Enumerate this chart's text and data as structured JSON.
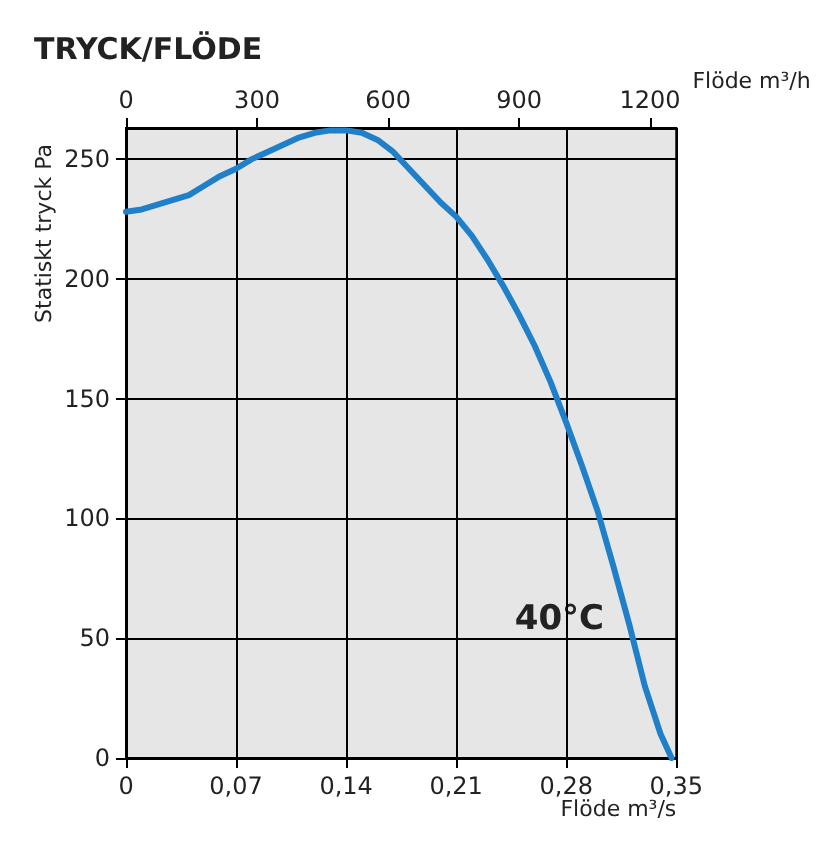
{
  "chart_data": {
    "type": "line",
    "title": "TRYCK/FLÖDE",
    "xlabel": "Flöde m³/s",
    "x2label": "Flöde m³/h",
    "ylabel": "Statiskt tryck Pa",
    "xlim": [
      0,
      0.35
    ],
    "xticks": [
      0,
      {
        "value": 0.07,
        "label": "0,07"
      },
      {
        "value": 0.14,
        "label": "0,14"
      },
      {
        "value": 0.21,
        "label": "0,21"
      },
      {
        "value": 0.28,
        "label": "0,28"
      },
      {
        "value": 0.35,
        "label": "0,35"
      }
    ],
    "x2lim": [
      0,
      1260
    ],
    "x2ticks": [
      0,
      300,
      600,
      900,
      1200
    ],
    "ylim": [
      0,
      263
    ],
    "yticks": [
      0,
      50,
      100,
      150,
      200,
      250
    ],
    "grid": true,
    "marker": "none",
    "line_style": "solid",
    "annotations": [
      "40°C"
    ],
    "series": [
      {
        "color": "#1f80c9",
        "x": [
          0,
          0.01,
          0.02,
          0.03,
          0.04,
          0.05,
          0.06,
          0.07,
          0.08,
          0.09,
          0.1,
          0.11,
          0.12,
          0.13,
          0.14,
          0.15,
          0.16,
          0.17,
          0.18,
          0.19,
          0.2,
          0.21,
          0.22,
          0.23,
          0.24,
          0.25,
          0.26,
          0.27,
          0.28,
          0.29,
          0.3,
          0.31,
          0.32,
          0.33,
          0.34,
          0.347
        ],
        "values": [
          228,
          229,
          231,
          233,
          235,
          239,
          243,
          246,
          250,
          253,
          256,
          259,
          261,
          262,
          262,
          261,
          258,
          253,
          246,
          239,
          232,
          226,
          218,
          208,
          197,
          185,
          172,
          157,
          140,
          122,
          103,
          80,
          56,
          30,
          10,
          0
        ]
      }
    ]
  }
}
